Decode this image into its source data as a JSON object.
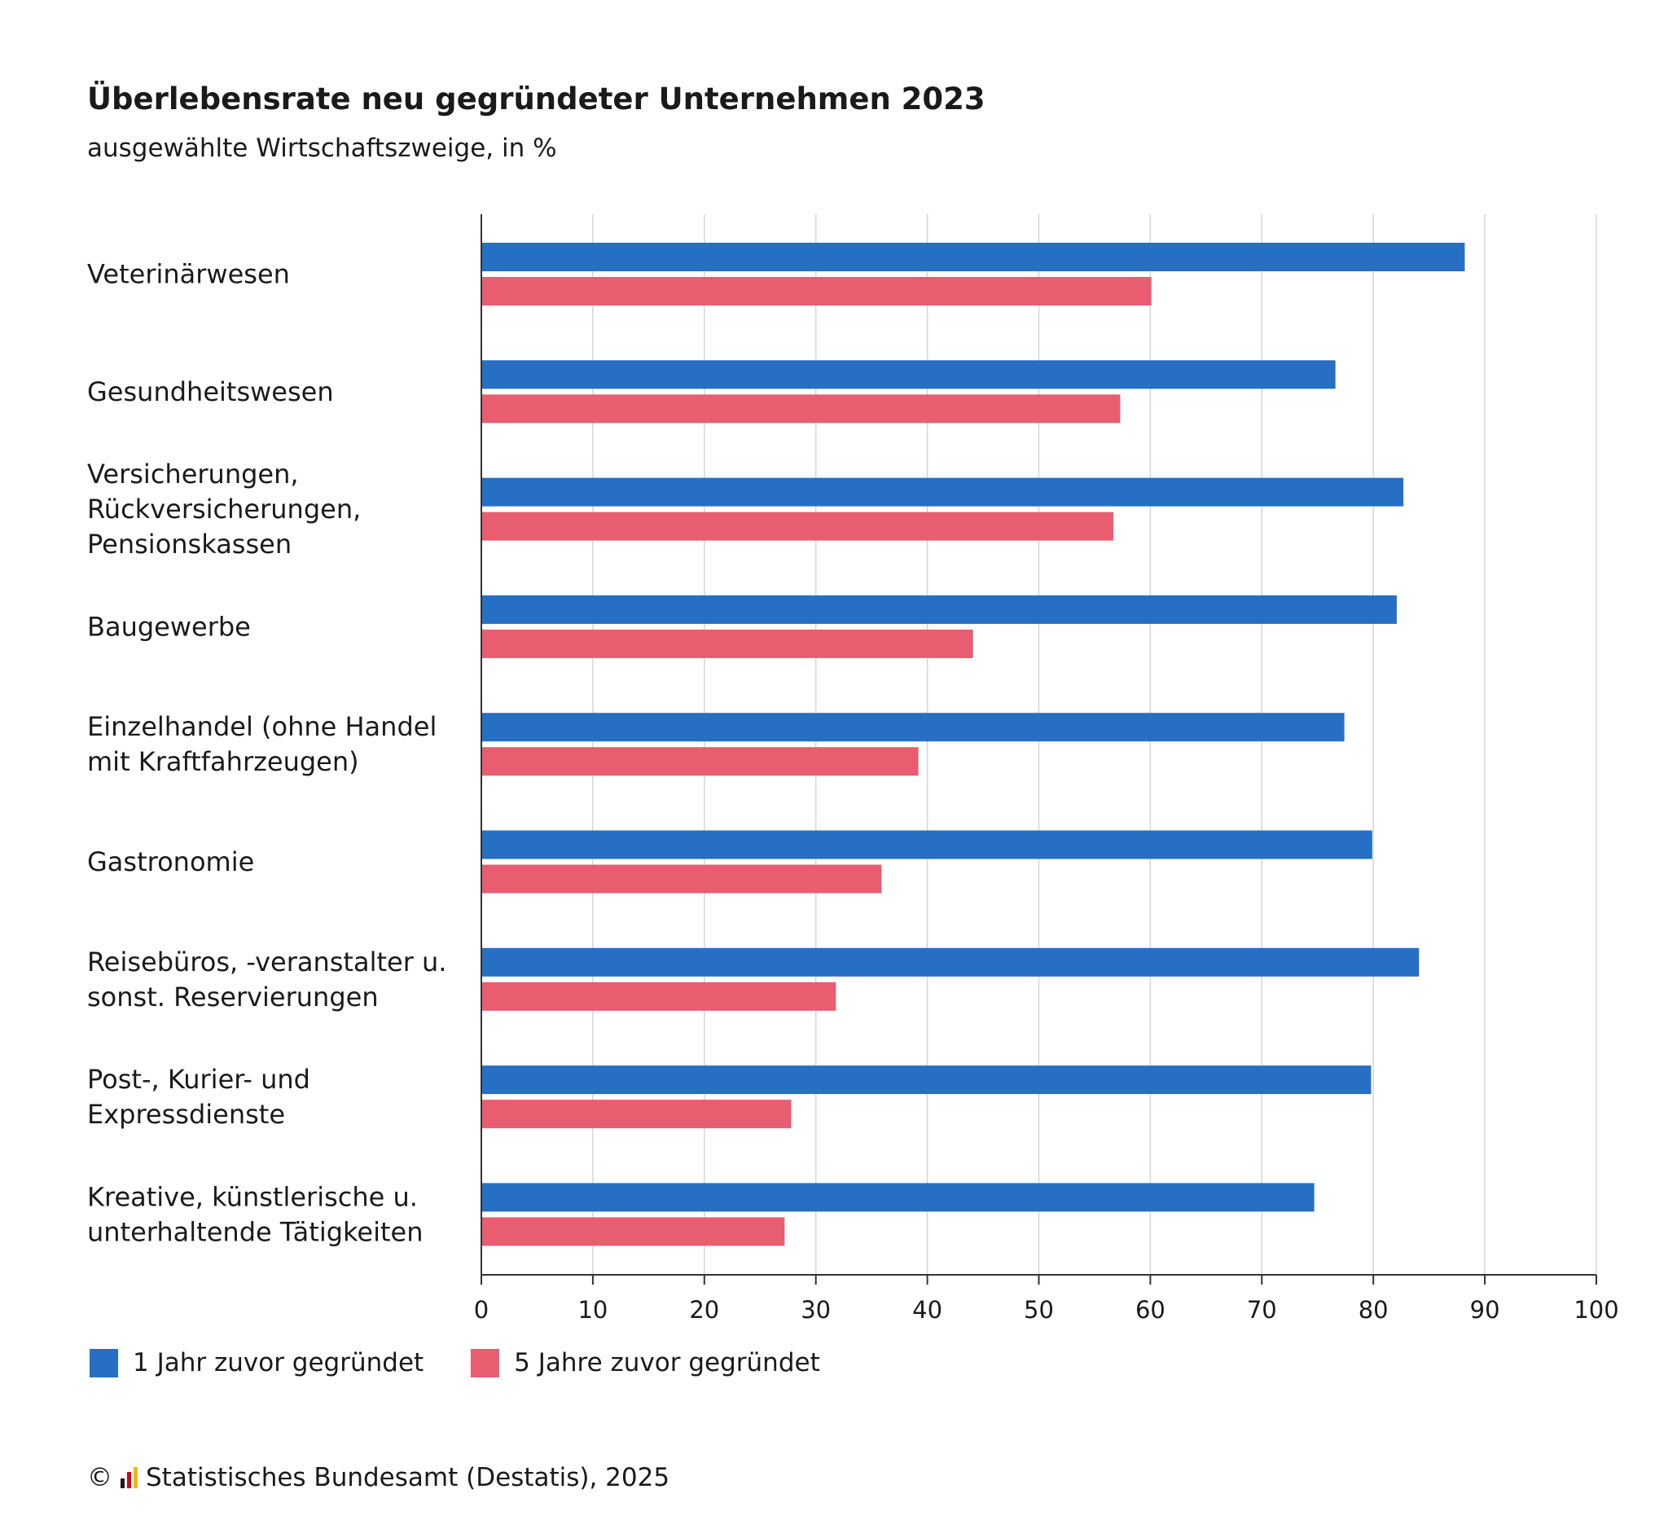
{
  "chart_data": {
    "type": "bar",
    "orientation": "horizontal",
    "title": "Überlebensrate neu gegründeter Unternehmen 2023",
    "subtitle": "ausgewählte Wirtschaftszweige, in %",
    "categories": [
      "Veterinärwesen",
      "Gesundheitswesen",
      "Versicherungen,\nRückversicherungen,\nPensionskassen",
      "Baugewerbe",
      "Einzelhandel (ohne Handel\nmit Kraftfahrzeugen)",
      "Gastronomie",
      "Reisebüros, -veranstalter u.\nsonst. Reservierungen",
      "Post-, Kurier- und\nExpressdienste",
      "Kreative, künstlerische u.\nunterhaltende Tätigkeiten"
    ],
    "series": [
      {
        "name": "1 Jahr zuvor gegründet",
        "color": "#266fc4",
        "values": [
          88.2,
          76.6,
          82.7,
          82.1,
          77.4,
          79.9,
          84.1,
          79.8,
          74.7
        ]
      },
      {
        "name": "5 Jahre zuvor gegründet",
        "color": "#e85d70",
        "values": [
          60.1,
          57.3,
          56.7,
          44.1,
          39.2,
          35.9,
          31.8,
          27.8,
          27.2
        ]
      }
    ],
    "xlim": [
      0,
      100
    ],
    "xticks": [
      0,
      10,
      20,
      30,
      40,
      50,
      60,
      70,
      80,
      90,
      100
    ],
    "grid": true,
    "legend_position": "bottom-left"
  },
  "source": {
    "copyright": "©",
    "text": "Statistisches Bundesamt (Destatis), 2025"
  }
}
